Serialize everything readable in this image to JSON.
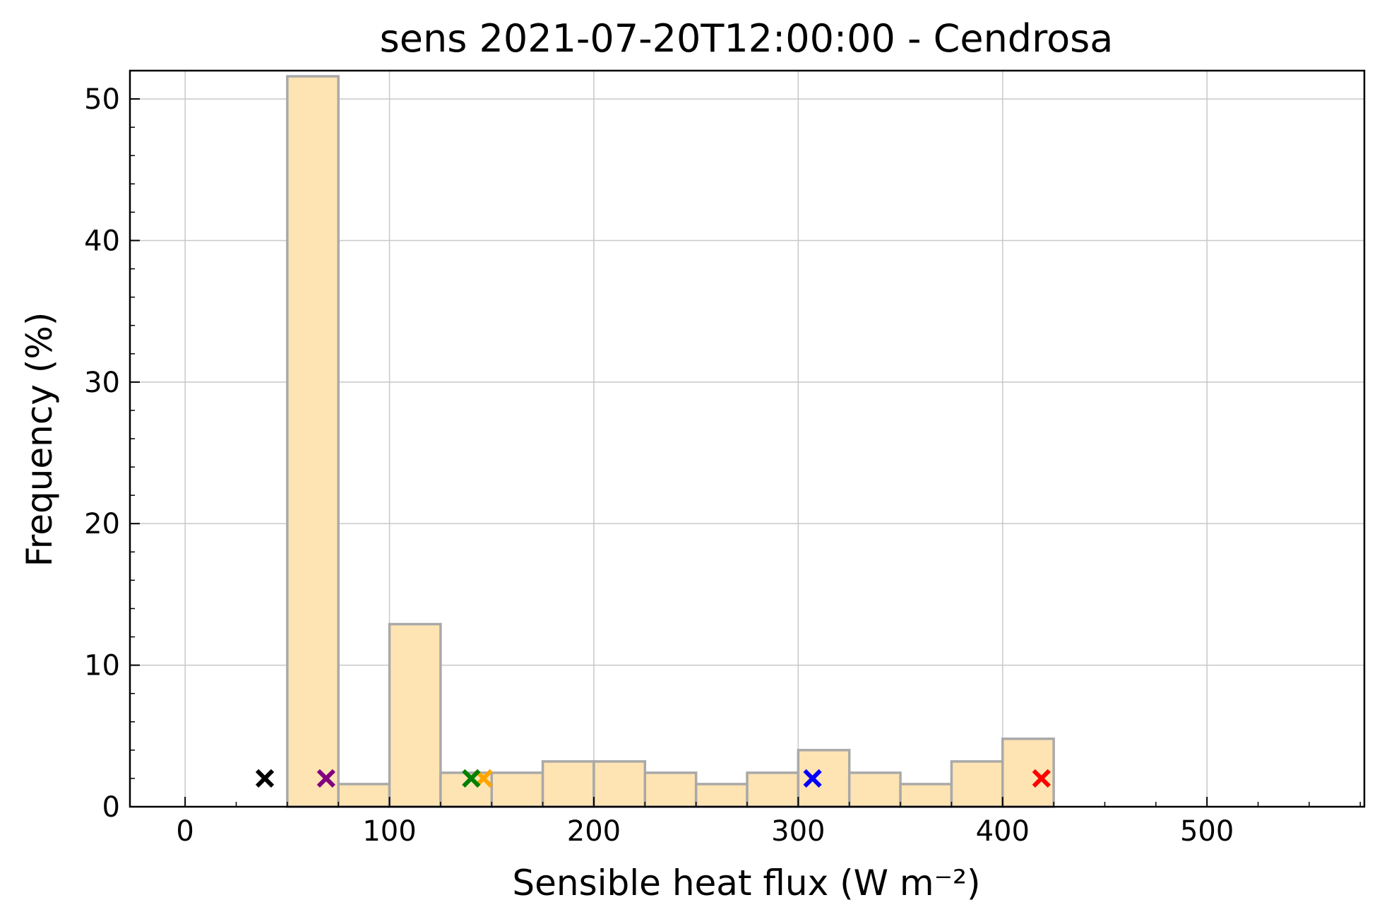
{
  "chart_data": {
    "type": "bar",
    "title": "sens 2021-07-20T12:00:00 - Cendrosa",
    "xlabel": "Sensible heat flux (W m⁻²)",
    "ylabel": "Frequency (%)",
    "xlim": [
      -27,
      577
    ],
    "ylim": [
      0,
      52
    ],
    "x_ticks": [
      0,
      100,
      200,
      300,
      400,
      500
    ],
    "y_ticks": [
      0,
      10,
      20,
      30,
      40,
      50
    ],
    "grid": true,
    "bar_color": "#ffe4b3",
    "bar_edge_color": "#a9a9a9",
    "bins": [
      {
        "x0": 50,
        "x1": 75,
        "value": 51.6
      },
      {
        "x0": 75,
        "x1": 100,
        "value": 1.6
      },
      {
        "x0": 100,
        "x1": 125,
        "value": 12.9
      },
      {
        "x0": 125,
        "x1": 150,
        "value": 2.4
      },
      {
        "x0": 150,
        "x1": 175,
        "value": 2.4
      },
      {
        "x0": 175,
        "x1": 200,
        "value": 3.2
      },
      {
        "x0": 200,
        "x1": 225,
        "value": 3.2
      },
      {
        "x0": 225,
        "x1": 250,
        "value": 2.4
      },
      {
        "x0": 250,
        "x1": 275,
        "value": 1.6
      },
      {
        "x0": 275,
        "x1": 300,
        "value": 2.4
      },
      {
        "x0": 300,
        "x1": 325,
        "value": 4.0
      },
      {
        "x0": 325,
        "x1": 350,
        "value": 2.4
      },
      {
        "x0": 350,
        "x1": 375,
        "value": 1.6
      },
      {
        "x0": 375,
        "x1": 400,
        "value": 3.2
      },
      {
        "x0": 400,
        "x1": 425,
        "value": 4.8
      }
    ],
    "markers": [
      {
        "x": 39,
        "y": 2,
        "color": "#000000"
      },
      {
        "x": 69,
        "y": 2,
        "color": "#800080"
      },
      {
        "x": 146,
        "y": 2,
        "color": "#ffa500"
      },
      {
        "x": 140,
        "y": 2,
        "color": "#008000"
      },
      {
        "x": 307,
        "y": 2,
        "color": "#0000ff"
      },
      {
        "x": 419,
        "y": 2,
        "color": "#ff0000"
      }
    ]
  }
}
